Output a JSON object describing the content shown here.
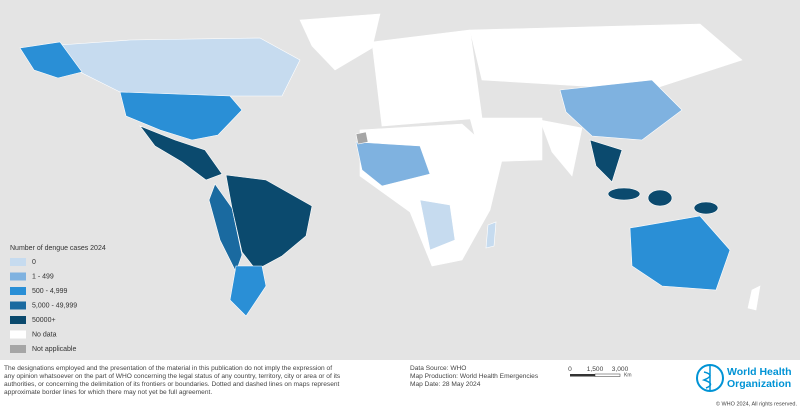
{
  "legend": {
    "title": "Number of dengue cases 2024",
    "items": [
      {
        "label": "0",
        "color": "#c6dbef"
      },
      {
        "label": "1 - 499",
        "color": "#7fb2e0"
      },
      {
        "label": "500 - 4,999",
        "color": "#2a8fd6"
      },
      {
        "label": "5,000 - 49,999",
        "color": "#1a6aa0"
      },
      {
        "label": "50000+",
        "color": "#0b4a6e"
      },
      {
        "label": "No data",
        "color": "#ffffff"
      },
      {
        "label": "Not applicable",
        "color": "#a6a6a6"
      }
    ]
  },
  "disclaimer": [
    "The designations employed and the presentation of the material in this publication do not imply the expression of",
    "any opinion whatsoever on the part of WHO concerning the legal status of any country, territory, city or area or of its",
    "authorities, or concerning the delimitation of its frontiers or boundaries. Dotted and dashed lines on maps represent",
    "approximate border lines for which there may not yet be full agreement."
  ],
  "source": [
    "Data Source: WHO",
    "Map Production: World Health Emergencies",
    "Map Date: 28 May 2024"
  ],
  "scale": {
    "labels": [
      "0",
      "1,500",
      "3,000"
    ],
    "unit": "Km"
  },
  "logo": {
    "line1": "World Health",
    "line2": "Organization"
  },
  "copyright": "© WHO 2024, All rights reserved."
}
